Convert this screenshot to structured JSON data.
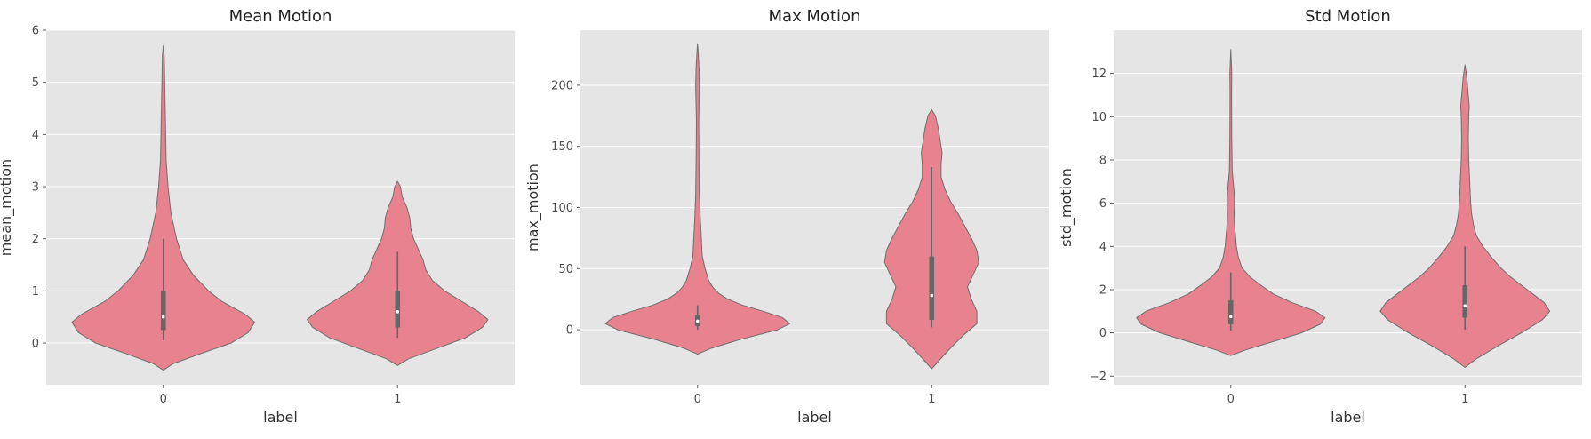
{
  "colors": {
    "panel_bg": "#E5E5E5",
    "grid": "#FFFFFF",
    "violin_fill": "#E8828F",
    "violin_edge": "#6E6E6E",
    "box": "#666666",
    "median": "#FFFFFF",
    "text": "#333333",
    "tick_text": "#4D4D4D"
  },
  "chart_data": [
    {
      "type": "violin",
      "title": "Mean Motion",
      "xlabel": "label",
      "ylabel": "mean_motion",
      "categories": [
        "0",
        "1"
      ],
      "ylim": [
        -0.8,
        6.0
      ],
      "yticks": [
        0,
        1,
        2,
        3,
        4,
        5,
        6
      ],
      "grid": true,
      "legend": "none",
      "violins": [
        {
          "category": "0",
          "q1": 0.25,
          "median": 0.5,
          "q3": 1.0,
          "whisker_low": 0.05,
          "whisker_high": 2.0,
          "profile": [
            [
              -0.52,
              0.0
            ],
            [
              -0.4,
              0.1
            ],
            [
              -0.2,
              0.4
            ],
            [
              0.0,
              0.72
            ],
            [
              0.2,
              0.9
            ],
            [
              0.4,
              0.97
            ],
            [
              0.55,
              0.87
            ],
            [
              0.8,
              0.62
            ],
            [
              1.0,
              0.48
            ],
            [
              1.3,
              0.32
            ],
            [
              1.6,
              0.21
            ],
            [
              2.0,
              0.14
            ],
            [
              2.5,
              0.08
            ],
            [
              3.0,
              0.05
            ],
            [
              3.5,
              0.03
            ],
            [
              4.0,
              0.025
            ],
            [
              4.5,
              0.02
            ],
            [
              5.0,
              0.015
            ],
            [
              5.5,
              0.01
            ],
            [
              5.7,
              0.0
            ]
          ]
        },
        {
          "category": "1",
          "q1": 0.3,
          "median": 0.6,
          "q3": 1.0,
          "whisker_low": 0.1,
          "whisker_high": 1.75,
          "profile": [
            [
              -0.43,
              0.0
            ],
            [
              -0.3,
              0.12
            ],
            [
              -0.1,
              0.42
            ],
            [
              0.1,
              0.72
            ],
            [
              0.3,
              0.9
            ],
            [
              0.45,
              0.96
            ],
            [
              0.6,
              0.86
            ],
            [
              0.8,
              0.68
            ],
            [
              1.0,
              0.5
            ],
            [
              1.2,
              0.37
            ],
            [
              1.4,
              0.3
            ],
            [
              1.6,
              0.27
            ],
            [
              1.8,
              0.22
            ],
            [
              2.0,
              0.17
            ],
            [
              2.2,
              0.14
            ],
            [
              2.4,
              0.13
            ],
            [
              2.6,
              0.1
            ],
            [
              2.8,
              0.05
            ],
            [
              3.0,
              0.03
            ],
            [
              3.1,
              0.0
            ]
          ]
        }
      ]
    },
    {
      "type": "violin",
      "title": "Max Motion",
      "xlabel": "label",
      "ylabel": "max_motion",
      "categories": [
        "0",
        "1"
      ],
      "ylim": [
        -45,
        245
      ],
      "yticks": [
        0,
        50,
        100,
        150,
        200
      ],
      "grid": true,
      "legend": "none",
      "violins": [
        {
          "category": "0",
          "q1": 3,
          "median": 7,
          "q3": 12,
          "whisker_low": 0,
          "whisker_high": 20,
          "profile": [
            [
              -20,
              0.0
            ],
            [
              -15,
              0.15
            ],
            [
              -8,
              0.45
            ],
            [
              0,
              0.85
            ],
            [
              5,
              0.98
            ],
            [
              10,
              0.9
            ],
            [
              15,
              0.7
            ],
            [
              20,
              0.48
            ],
            [
              25,
              0.32
            ],
            [
              30,
              0.22
            ],
            [
              35,
              0.16
            ],
            [
              40,
              0.12
            ],
            [
              50,
              0.08
            ],
            [
              60,
              0.05
            ],
            [
              75,
              0.04
            ],
            [
              90,
              0.03
            ],
            [
              110,
              0.02
            ],
            [
              140,
              0.015
            ],
            [
              170,
              0.012
            ],
            [
              200,
              0.02
            ],
            [
              215,
              0.015
            ],
            [
              225,
              0.008
            ],
            [
              234,
              0.0
            ]
          ]
        },
        {
          "category": "1",
          "q1": 8,
          "median": 28,
          "q3": 60,
          "whisker_low": 2,
          "whisker_high": 133,
          "profile": [
            [
              -32,
              0.0
            ],
            [
              -25,
              0.08
            ],
            [
              -15,
              0.2
            ],
            [
              -5,
              0.33
            ],
            [
              5,
              0.48
            ],
            [
              15,
              0.48
            ],
            [
              25,
              0.42
            ],
            [
              35,
              0.38
            ],
            [
              45,
              0.44
            ],
            [
              55,
              0.5
            ],
            [
              65,
              0.48
            ],
            [
              75,
              0.42
            ],
            [
              85,
              0.35
            ],
            [
              95,
              0.28
            ],
            [
              105,
              0.2
            ],
            [
              115,
              0.14
            ],
            [
              125,
              0.1
            ],
            [
              135,
              0.1
            ],
            [
              145,
              0.11
            ],
            [
              155,
              0.09
            ],
            [
              165,
              0.07
            ],
            [
              175,
              0.04
            ],
            [
              180,
              0.0
            ]
          ]
        }
      ]
    },
    {
      "type": "violin",
      "title": "Std Motion",
      "xlabel": "label",
      "ylabel": "std_motion",
      "categories": [
        "0",
        "1"
      ],
      "ylim": [
        -2.4,
        14.0
      ],
      "yticks": [
        -2,
        0,
        2,
        4,
        6,
        8,
        10,
        12
      ],
      "grid": true,
      "legend": "none",
      "violins": [
        {
          "category": "0",
          "q1": 0.4,
          "median": 0.75,
          "q3": 1.5,
          "whisker_low": 0.1,
          "whisker_high": 2.8,
          "profile": [
            [
              -1.05,
              0.0
            ],
            [
              -0.8,
              0.15
            ],
            [
              -0.4,
              0.45
            ],
            [
              0.0,
              0.75
            ],
            [
              0.4,
              0.95
            ],
            [
              0.7,
              1.0
            ],
            [
              1.0,
              0.9
            ],
            [
              1.4,
              0.65
            ],
            [
              1.8,
              0.45
            ],
            [
              2.2,
              0.32
            ],
            [
              2.6,
              0.2
            ],
            [
              3.0,
              0.12
            ],
            [
              3.5,
              0.08
            ],
            [
              4.0,
              0.06
            ],
            [
              4.5,
              0.05
            ],
            [
              5.0,
              0.04
            ],
            [
              5.5,
              0.035
            ],
            [
              6.0,
              0.04
            ],
            [
              6.5,
              0.035
            ],
            [
              7.5,
              0.015
            ],
            [
              9.0,
              0.01
            ],
            [
              11.0,
              0.008
            ],
            [
              12.0,
              0.01
            ],
            [
              13.1,
              0.0
            ]
          ]
        },
        {
          "category": "1",
          "q1": 0.7,
          "median": 1.25,
          "q3": 2.2,
          "whisker_low": 0.15,
          "whisker_high": 4.0,
          "profile": [
            [
              -1.6,
              0.0
            ],
            [
              -1.2,
              0.12
            ],
            [
              -0.6,
              0.35
            ],
            [
              0.0,
              0.6
            ],
            [
              0.6,
              0.82
            ],
            [
              1.0,
              0.9
            ],
            [
              1.4,
              0.84
            ],
            [
              1.8,
              0.72
            ],
            [
              2.2,
              0.6
            ],
            [
              2.6,
              0.48
            ],
            [
              3.0,
              0.38
            ],
            [
              3.5,
              0.28
            ],
            [
              4.0,
              0.19
            ],
            [
              4.5,
              0.12
            ],
            [
              5.0,
              0.09
            ],
            [
              5.5,
              0.07
            ],
            [
              6.0,
              0.06
            ],
            [
              7.0,
              0.05
            ],
            [
              8.0,
              0.04
            ],
            [
              9.0,
              0.035
            ],
            [
              10.0,
              0.04
            ],
            [
              10.5,
              0.045
            ],
            [
              11.0,
              0.035
            ],
            [
              11.8,
              0.02
            ],
            [
              12.4,
              0.0
            ]
          ]
        }
      ]
    }
  ]
}
